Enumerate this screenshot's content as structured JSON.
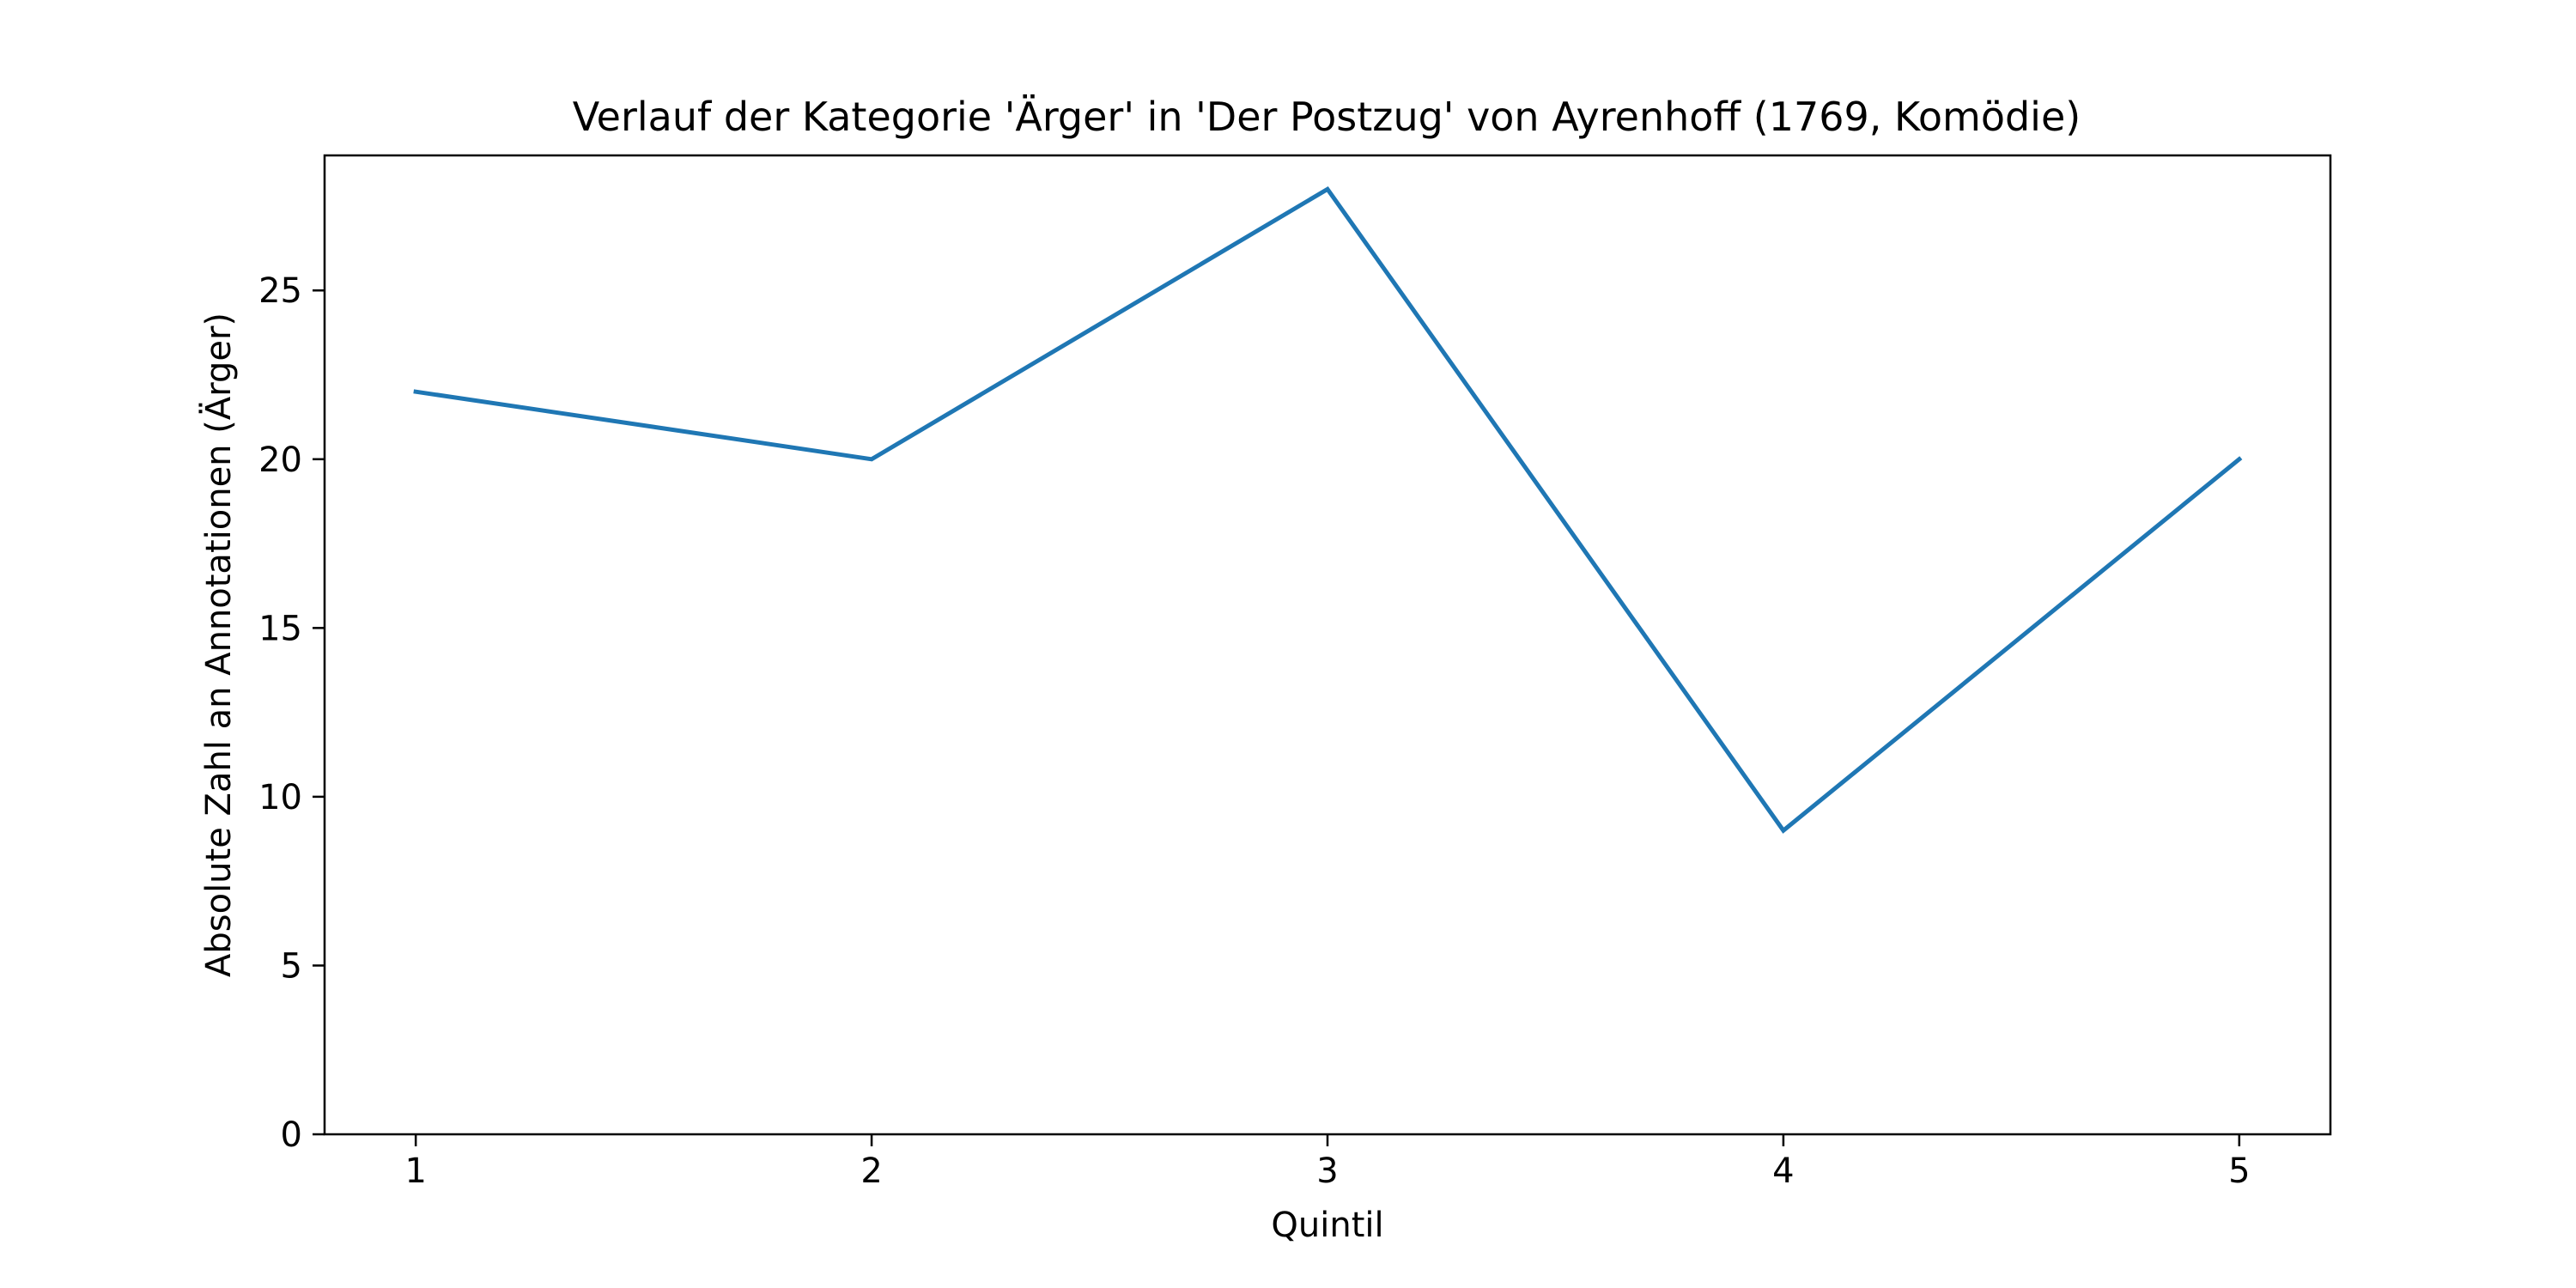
{
  "chart_data": {
    "type": "line",
    "title": "Verlauf der Kategorie 'Ärger' in 'Der Postzug' von Ayrenhoff (1769, Komödie)",
    "xlabel": "Quintil",
    "ylabel": "Absolute Zahl an Annotationen (Ärger)",
    "x": [
      1,
      2,
      3,
      4,
      5
    ],
    "series": [
      {
        "values": [
          22,
          20,
          28,
          9,
          20
        ],
        "color": "#1f77b4"
      }
    ],
    "xlim": [
      0.8,
      5.2
    ],
    "ylim": [
      0,
      29
    ],
    "xticks": [
      "1",
      "2",
      "3",
      "4",
      "5"
    ],
    "yticks": [
      "0",
      "5",
      "10",
      "15",
      "20",
      "25"
    ],
    "grid": false,
    "legend": "none"
  }
}
